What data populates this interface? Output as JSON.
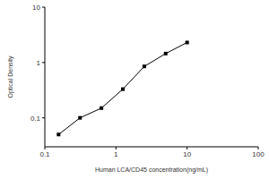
{
  "chart_data": {
    "type": "line",
    "x_label": "Human LCA/CD45 concentration(ng/mL)",
    "y_label": "Optical Density",
    "log": true,
    "x": [
      0.156,
      0.3125,
      0.625,
      1.25,
      2.5,
      5,
      10
    ],
    "values": [
      0.05,
      0.1,
      0.15,
      0.33,
      0.85,
      1.45,
      2.3
    ],
    "xlim": [
      0.1,
      100
    ],
    "ylim": [
      0.03,
      10
    ],
    "xticks": [
      0.1,
      1,
      10,
      100
    ],
    "yticks": [
      0.1,
      1,
      10
    ],
    "color": "#000000",
    "marker": "square",
    "grid": false
  }
}
